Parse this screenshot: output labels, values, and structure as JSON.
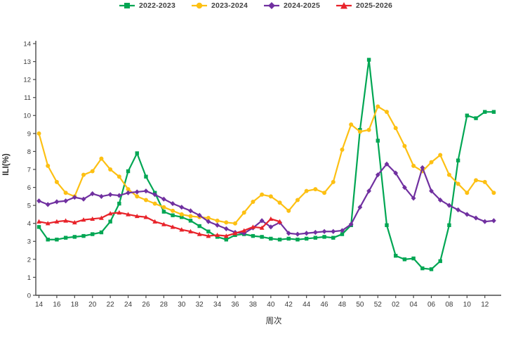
{
  "chart_data": {
    "type": "line",
    "title": "",
    "grid": false,
    "background": "#ffffff",
    "axis_color": "#4a4a4a",
    "tick_text_color": "#3a3a3a",
    "legend_position": "top-center",
    "x_axis": {
      "label": "周次",
      "tick_labels": [
        "14",
        "16",
        "18",
        "20",
        "22",
        "24",
        "26",
        "28",
        "30",
        "32",
        "34",
        "36",
        "38",
        "40",
        "42",
        "44",
        "46",
        "48",
        "50",
        "52",
        "02",
        "04",
        "06",
        "08",
        "10",
        "12"
      ]
    },
    "y_axis": {
      "label": "ILI(%)",
      "min": 0,
      "max": 14,
      "tick_step": 1
    },
    "categories": [
      "14",
      "15",
      "16",
      "17",
      "18",
      "19",
      "20",
      "21",
      "22",
      "23",
      "24",
      "25",
      "26",
      "27",
      "28",
      "29",
      "30",
      "31",
      "32",
      "33",
      "34",
      "35",
      "36",
      "37",
      "38",
      "39",
      "40",
      "41",
      "42",
      "43",
      "44",
      "45",
      "46",
      "47",
      "48",
      "49",
      "50",
      "51",
      "52",
      "01",
      "02",
      "03",
      "04",
      "05",
      "06",
      "07",
      "08",
      "09",
      "10",
      "11",
      "12",
      "13"
    ],
    "series": [
      {
        "name": "2022-2023",
        "color": "#00a653",
        "marker": "square",
        "values": [
          3.8,
          3.1,
          3.1,
          3.2,
          3.25,
          3.3,
          3.4,
          3.5,
          4.1,
          5.1,
          6.9,
          7.9,
          6.6,
          5.7,
          4.65,
          4.45,
          4.35,
          4.15,
          3.85,
          3.55,
          3.25,
          3.1,
          3.35,
          3.4,
          3.3,
          3.25,
          3.15,
          3.1,
          3.15,
          3.1,
          3.15,
          3.2,
          3.25,
          3.2,
          3.4,
          3.9,
          9.2,
          13.1,
          8.6,
          3.9,
          2.2,
          2.0,
          2.05,
          1.5,
          1.45,
          1.9,
          3.9,
          7.5,
          10.0,
          9.85,
          10.2,
          10.2
        ]
      },
      {
        "name": "2023-2024",
        "color": "#fdc013",
        "marker": "circle",
        "values": [
          9.0,
          7.2,
          6.3,
          5.7,
          5.5,
          6.7,
          6.9,
          7.6,
          7.0,
          6.6,
          5.9,
          5.5,
          5.3,
          5.1,
          4.9,
          4.7,
          4.5,
          4.4,
          4.35,
          4.3,
          4.15,
          4.05,
          4.0,
          4.6,
          5.2,
          5.6,
          5.5,
          5.15,
          4.7,
          5.3,
          5.8,
          5.9,
          5.7,
          6.3,
          8.1,
          9.5,
          9.1,
          9.2,
          10.5,
          10.2,
          9.3,
          8.3,
          7.2,
          6.9,
          7.4,
          7.8,
          6.7,
          6.2,
          5.7,
          6.4,
          6.3,
          5.7
        ]
      },
      {
        "name": "2024-2025",
        "color": "#7030a0",
        "marker": "diamond",
        "values": [
          5.25,
          5.05,
          5.2,
          5.25,
          5.45,
          5.35,
          5.65,
          5.5,
          5.6,
          5.55,
          5.7,
          5.75,
          5.8,
          5.6,
          5.35,
          5.1,
          4.9,
          4.7,
          4.45,
          4.1,
          3.9,
          3.7,
          3.5,
          3.45,
          3.75,
          4.15,
          3.8,
          4.05,
          3.45,
          3.4,
          3.45,
          3.5,
          3.55,
          3.55,
          3.6,
          3.95,
          4.9,
          5.8,
          6.7,
          7.3,
          6.8,
          6.0,
          5.4,
          7.1,
          5.8,
          5.3,
          5.0,
          4.75,
          4.5,
          4.3,
          4.1,
          4.15
        ]
      },
      {
        "name": "2025-2026",
        "color": "#e8232a",
        "marker": "triangle",
        "values": [
          4.1,
          4.0,
          4.1,
          4.15,
          4.05,
          4.2,
          4.25,
          4.3,
          4.55,
          4.6,
          4.5,
          4.4,
          4.35,
          4.1,
          3.95,
          3.8,
          3.65,
          3.55,
          3.4,
          3.3,
          3.35,
          3.3,
          3.45,
          3.6,
          3.8,
          3.75,
          4.25,
          4.1,
          null,
          null,
          null,
          null,
          null,
          null,
          null,
          null,
          null,
          null,
          null,
          null,
          null,
          null,
          null,
          null,
          null,
          null,
          null,
          null,
          null,
          null,
          null,
          null
        ]
      }
    ]
  }
}
